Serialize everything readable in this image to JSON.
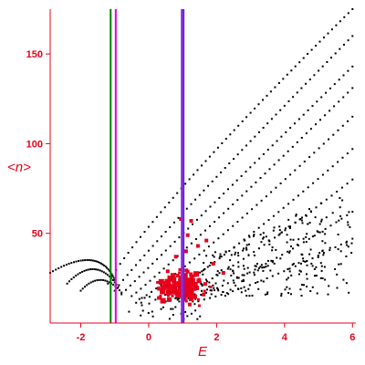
{
  "chart_data": {
    "type": "scatter",
    "xlabel": "E",
    "ylabel": "<n>",
    "xlim": [
      -2.9,
      6.1
    ],
    "ylim": [
      0,
      175
    ],
    "x_ticks": [
      -2,
      0,
      2,
      4,
      6
    ],
    "x_tick_labels": [
      "-2",
      "0",
      "2",
      "4",
      "6"
    ],
    "y_ticks": [
      50,
      100,
      150
    ],
    "y_tick_labels": [
      "50",
      "100",
      "150"
    ],
    "grid": false,
    "colors": {
      "axes": "#e8001a",
      "black_points": "#000000",
      "red_points": "#e8001a",
      "line_green": "#008000",
      "line_magenta": "#e000e0",
      "line_purple": "#8a2be2",
      "line_blue": "#3030ff"
    },
    "vertical_lines": [
      {
        "x": -1.12,
        "color": "#008000",
        "width": 2
      },
      {
        "x": -0.97,
        "color": "#e000e0",
        "width": 2
      },
      {
        "x": 1.0,
        "color": "#8a2be2",
        "width": 4
      },
      {
        "x": 1.03,
        "color": "#3030ff",
        "width": 1
      }
    ],
    "series": [
      {
        "color": "#000000",
        "curves": [
          {
            "from": [
              -1.2,
              22
            ],
            "to": [
              6.0,
              175
            ],
            "exp": 0.88,
            "n": 60
          },
          {
            "from": [
              -1.0,
              18
            ],
            "to": [
              6.0,
              160
            ],
            "exp": 0.95,
            "n": 56
          },
          {
            "from": [
              -0.8,
              16
            ],
            "to": [
              6.0,
              143
            ],
            "exp": 1.0,
            "n": 52
          },
          {
            "from": [
              -0.5,
              15
            ],
            "to": [
              6.0,
              131
            ],
            "exp": 1.05,
            "n": 48
          },
          {
            "from": [
              -0.2,
              14
            ],
            "to": [
              6.0,
              115
            ],
            "exp": 1.1,
            "n": 44
          },
          {
            "from": [
              0.2,
              13
            ],
            "to": [
              6.0,
              97
            ],
            "exp": 1.15,
            "n": 40
          },
          {
            "from": [
              0.5,
              12
            ],
            "to": [
              6.0,
              80
            ],
            "exp": 1.2,
            "n": 36
          },
          {
            "from": [
              0.9,
              12
            ],
            "to": [
              6.0,
              62
            ],
            "exp": 1.25,
            "n": 32
          },
          {
            "from": [
              1.3,
              12
            ],
            "to": [
              6.0,
              47
            ],
            "exp": 1.3,
            "n": 28
          }
        ],
        "left_branches": [
          {
            "from": [
              -2.9,
              28
            ],
            "peak": [
              -1.7,
              35
            ],
            "to": [
              -1.0,
              24
            ],
            "n": 34
          },
          {
            "from": [
              -2.4,
              22
            ],
            "peak": [
              -1.6,
              30
            ],
            "to": [
              -0.9,
              20
            ],
            "n": 26
          },
          {
            "from": [
              -2.0,
              18
            ],
            "peak": [
              -1.4,
              24
            ],
            "to": [
              -0.8,
              17
            ],
            "n": 20
          }
        ],
        "scatter_region": {
          "x": [
            1.5,
            6.0
          ],
          "y": [
            15,
            75
          ],
          "count": 260
        }
      },
      {
        "color": "#e8001a",
        "cluster": {
          "center": [
            0.95,
            20
          ],
          "spread": [
            0.45,
            6
          ],
          "count": 140
        },
        "outliers": [
          [
            1.1,
            40
          ],
          [
            1.15,
            49
          ],
          [
            0.8,
            37
          ],
          [
            1.25,
            57
          ],
          [
            1.9,
            33
          ],
          [
            2.2,
            28
          ],
          [
            0.3,
            14
          ],
          [
            1.45,
            43
          ],
          [
            0.95,
            58
          ],
          [
            1.7,
            46
          ]
        ]
      }
    ]
  }
}
